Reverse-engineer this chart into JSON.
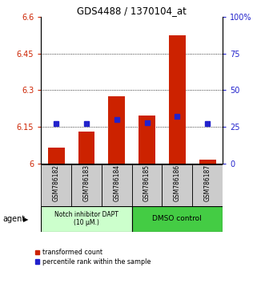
{
  "title": "GDS4488 / 1370104_at",
  "samples": [
    "GSM786182",
    "GSM786183",
    "GSM786184",
    "GSM786185",
    "GSM786186",
    "GSM786187"
  ],
  "red_values": [
    6.065,
    6.13,
    6.275,
    6.195,
    6.525,
    6.015
  ],
  "blue_values_pct": [
    27,
    27,
    30,
    28,
    32,
    27
  ],
  "ylim_left": [
    6.0,
    6.6
  ],
  "ylim_right": [
    0,
    100
  ],
  "yticks_left": [
    6.0,
    6.15,
    6.3,
    6.45,
    6.6
  ],
  "yticks_right": [
    0,
    25,
    50,
    75,
    100
  ],
  "ytick_labels_left": [
    "6",
    "6.15",
    "6.3",
    "6.45",
    "6.6"
  ],
  "ytick_labels_right": [
    "0",
    "25",
    "50",
    "75",
    "100%"
  ],
  "bar_color": "#cc2200",
  "dot_color": "#2222cc",
  "bar_bottom": 6.0,
  "group1_label": "Notch inhibitor DAPT\n(10 μM.)",
  "group2_label": "DMSO control",
  "group1_color": "#ccffcc",
  "group2_color": "#44cc44",
  "legend_red": "transformed count",
  "legend_blue": "percentile rank within the sample",
  "agent_label": "agent",
  "bar_width": 0.55
}
